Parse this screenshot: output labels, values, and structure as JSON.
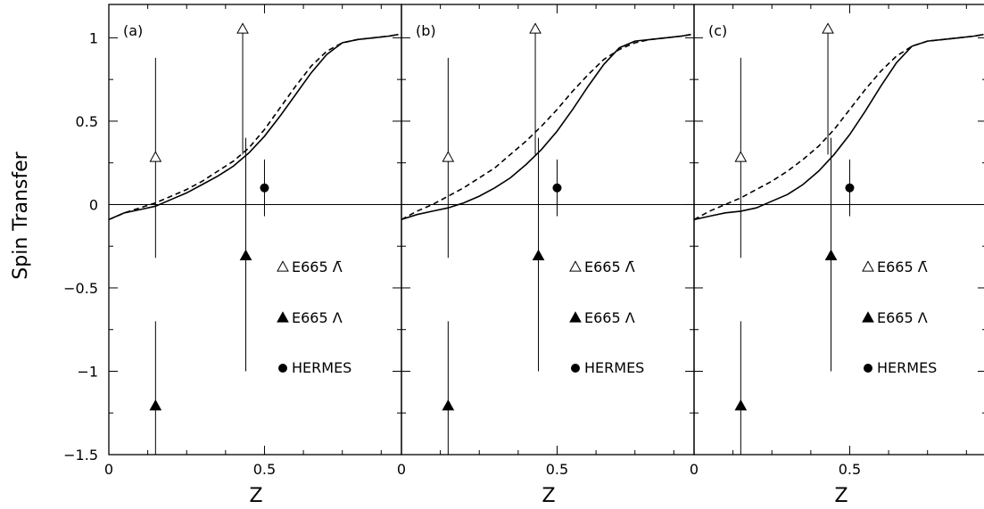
{
  "chart_data": [
    {
      "type": "line",
      "panel_tag": "(a)",
      "ylabel": "Spin Transfer",
      "xlabel": "Z",
      "xlim": [
        0,
        0.94
      ],
      "ylim": [
        -1.5,
        1.2
      ],
      "x_ticks": [
        "0",
        "0.5"
      ],
      "y_ticks": [
        "1",
        "0.5",
        "0",
        "−0.5",
        "−1",
        "−1.5"
      ],
      "curves": [
        {
          "style": "solid",
          "x": [
            0,
            0.05,
            0.1,
            0.15,
            0.2,
            0.25,
            0.3,
            0.35,
            0.4,
            0.45,
            0.5,
            0.55,
            0.6,
            0.65,
            0.7,
            0.75,
            0.8,
            0.85,
            0.9,
            0.93
          ],
          "y": [
            -0.09,
            -0.05,
            -0.03,
            -0.01,
            0.03,
            0.07,
            0.12,
            0.17,
            0.23,
            0.31,
            0.41,
            0.53,
            0.66,
            0.79,
            0.9,
            0.97,
            0.99,
            1.0,
            1.01,
            1.02
          ]
        },
        {
          "style": "dashed",
          "x": [
            0,
            0.05,
            0.1,
            0.15,
            0.2,
            0.25,
            0.3,
            0.35,
            0.4,
            0.45,
            0.5,
            0.55,
            0.6,
            0.65,
            0.7,
            0.75,
            0.8,
            0.85,
            0.9,
            0.93
          ],
          "y": [
            -0.09,
            -0.05,
            -0.02,
            0.01,
            0.05,
            0.09,
            0.14,
            0.2,
            0.26,
            0.34,
            0.45,
            0.58,
            0.71,
            0.83,
            0.92,
            0.97,
            0.99,
            1.0,
            1.01,
            1.02
          ]
        }
      ],
      "points": [
        {
          "series": "E665 anti-Lambda",
          "marker": "triangle-open",
          "x": 0.15,
          "y": 0.28,
          "err_low": -0.32,
          "err_high": 0.88
        },
        {
          "series": "E665 anti-Lambda",
          "marker": "triangle-open",
          "x": 0.43,
          "y": 1.05,
          "err_low": 0.3,
          "err_high": 1.05
        },
        {
          "series": "E665 Lambda",
          "marker": "triangle-filled",
          "x": 0.15,
          "y": -1.21,
          "err_low": -1.5,
          "err_high": -0.7
        },
        {
          "series": "E665 Lambda",
          "marker": "triangle-filled",
          "x": 0.44,
          "y": -0.31,
          "err_low": -1.0,
          "err_high": 0.4
        },
        {
          "series": "HERMES",
          "marker": "circle-filled",
          "x": 0.5,
          "y": 0.1,
          "err_low": -0.07,
          "err_high": 0.27
        }
      ],
      "legend": [
        {
          "marker": "triangle-open",
          "label": "E665 Λ̄"
        },
        {
          "marker": "triangle-filled",
          "label": "E665 Λ"
        },
        {
          "marker": "circle-filled",
          "label": "HERMES"
        }
      ],
      "reference_line_y": 0
    },
    {
      "type": "line",
      "panel_tag": "(b)",
      "xlabel": "Z",
      "xlim": [
        0,
        0.94
      ],
      "ylim": [
        -1.5,
        1.2
      ],
      "x_ticks": [
        "0",
        "0.5"
      ],
      "curves": [
        {
          "style": "solid",
          "x": [
            0,
            0.05,
            0.1,
            0.15,
            0.2,
            0.25,
            0.3,
            0.35,
            0.4,
            0.45,
            0.5,
            0.55,
            0.6,
            0.65,
            0.7,
            0.75,
            0.8,
            0.85,
            0.9,
            0.93
          ],
          "y": [
            -0.09,
            -0.06,
            -0.04,
            -0.02,
            0.01,
            0.05,
            0.1,
            0.16,
            0.24,
            0.33,
            0.44,
            0.57,
            0.71,
            0.84,
            0.94,
            0.98,
            0.99,
            1.0,
            1.01,
            1.02
          ]
        },
        {
          "style": "dashed",
          "x": [
            0,
            0.05,
            0.1,
            0.15,
            0.2,
            0.25,
            0.3,
            0.35,
            0.4,
            0.45,
            0.5,
            0.55,
            0.6,
            0.65,
            0.7,
            0.75,
            0.8,
            0.85,
            0.9,
            0.93
          ],
          "y": [
            -0.09,
            -0.04,
            0.0,
            0.05,
            0.1,
            0.16,
            0.22,
            0.3,
            0.38,
            0.47,
            0.57,
            0.68,
            0.78,
            0.87,
            0.93,
            0.97,
            0.99,
            1.0,
            1.01,
            1.02
          ]
        }
      ],
      "points": [
        {
          "series": "E665 anti-Lambda",
          "marker": "triangle-open",
          "x": 0.15,
          "y": 0.28,
          "err_low": -0.32,
          "err_high": 0.88
        },
        {
          "series": "E665 anti-Lambda",
          "marker": "triangle-open",
          "x": 0.43,
          "y": 1.05,
          "err_low": 0.3,
          "err_high": 1.05
        },
        {
          "series": "E665 Lambda",
          "marker": "triangle-filled",
          "x": 0.15,
          "y": -1.21,
          "err_low": -1.5,
          "err_high": -0.7
        },
        {
          "series": "E665 Lambda",
          "marker": "triangle-filled",
          "x": 0.44,
          "y": -0.31,
          "err_low": -1.0,
          "err_high": 0.4
        },
        {
          "series": "HERMES",
          "marker": "circle-filled",
          "x": 0.5,
          "y": 0.1,
          "err_low": -0.07,
          "err_high": 0.27
        }
      ],
      "legend": [
        {
          "marker": "triangle-open",
          "label": "E665 Λ̄"
        },
        {
          "marker": "triangle-filled",
          "label": "E665 Λ"
        },
        {
          "marker": "circle-filled",
          "label": "HERMES"
        }
      ],
      "reference_line_y": 0
    },
    {
      "type": "line",
      "panel_tag": "(c)",
      "xlabel": "Z",
      "xlim": [
        0,
        0.94
      ],
      "ylim": [
        -1.5,
        1.2
      ],
      "x_ticks": [
        "0",
        "0.5"
      ],
      "curves": [
        {
          "style": "solid",
          "x": [
            0,
            0.05,
            0.1,
            0.15,
            0.2,
            0.25,
            0.3,
            0.35,
            0.4,
            0.45,
            0.5,
            0.55,
            0.6,
            0.65,
            0.7,
            0.75,
            0.8,
            0.85,
            0.9,
            0.93
          ],
          "y": [
            -0.09,
            -0.07,
            -0.05,
            -0.04,
            -0.02,
            0.02,
            0.06,
            0.12,
            0.2,
            0.3,
            0.42,
            0.56,
            0.71,
            0.85,
            0.95,
            0.98,
            0.99,
            1.0,
            1.01,
            1.02
          ]
        },
        {
          "style": "dashed",
          "x": [
            0,
            0.05,
            0.1,
            0.15,
            0.2,
            0.25,
            0.3,
            0.35,
            0.4,
            0.45,
            0.5,
            0.55,
            0.6,
            0.65,
            0.7,
            0.75,
            0.8,
            0.85,
            0.9,
            0.93
          ],
          "y": [
            -0.09,
            -0.04,
            0.0,
            0.04,
            0.09,
            0.14,
            0.2,
            0.27,
            0.35,
            0.45,
            0.57,
            0.69,
            0.8,
            0.89,
            0.95,
            0.98,
            0.99,
            1.0,
            1.01,
            1.02
          ]
        }
      ],
      "points": [
        {
          "series": "E665 anti-Lambda",
          "marker": "triangle-open",
          "x": 0.15,
          "y": 0.28,
          "err_low": -0.32,
          "err_high": 0.88
        },
        {
          "series": "E665 anti-Lambda",
          "marker": "triangle-open",
          "x": 0.43,
          "y": 1.05,
          "err_low": 0.3,
          "err_high": 1.05
        },
        {
          "series": "E665 Lambda",
          "marker": "triangle-filled",
          "x": 0.15,
          "y": -1.21,
          "err_low": -1.5,
          "err_high": -0.7
        },
        {
          "series": "E665 Lambda",
          "marker": "triangle-filled",
          "x": 0.44,
          "y": -0.31,
          "err_low": -1.0,
          "err_high": 0.4
        },
        {
          "series": "HERMES",
          "marker": "circle-filled",
          "x": 0.5,
          "y": 0.1,
          "err_low": -0.07,
          "err_high": 0.27
        }
      ],
      "legend": [
        {
          "marker": "triangle-open",
          "label": "E665 Λ̄"
        },
        {
          "marker": "triangle-filled",
          "label": "E665 Λ"
        },
        {
          "marker": "circle-filled",
          "label": "HERMES"
        }
      ],
      "reference_line_y": 0
    }
  ]
}
